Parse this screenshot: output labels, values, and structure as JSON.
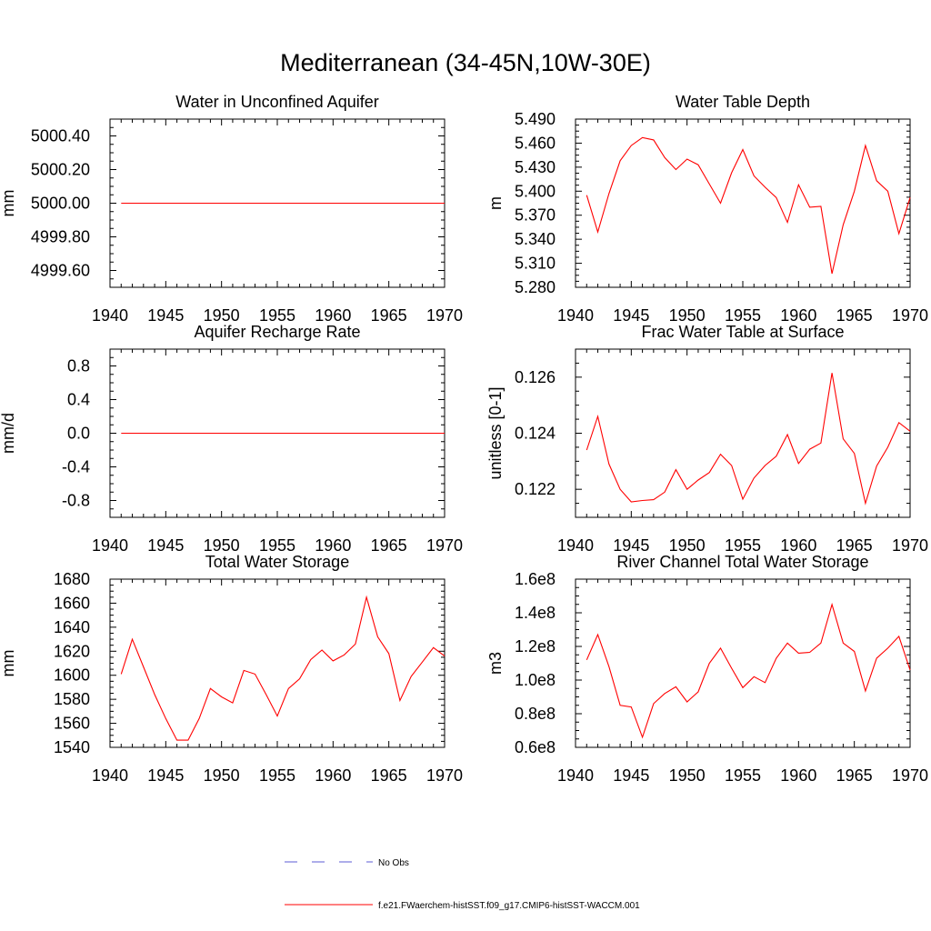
{
  "title": "Mediterranean (34-45N,10W-30E)",
  "line_color": "#ff0000",
  "obs_color": "#5b5bd6",
  "legend": {
    "items": [
      {
        "label": "No Obs",
        "style": "dashed"
      },
      {
        "label": "f.e21.FWaerchem-histSST.f09_g17.CMIP6-histSST-WACCM.001",
        "style": "solid"
      }
    ]
  },
  "chart_data": [
    {
      "type": "line",
      "title": "Water in Unconfined Aquifer",
      "ylabel": "mm",
      "xlim": [
        1940,
        1970
      ],
      "ylim": [
        4999.5,
        5000.5
      ],
      "xticks": [
        1940,
        1945,
        1950,
        1955,
        1960,
        1965,
        1970
      ],
      "yticks": [
        4999.6,
        4999.8,
        5000.0,
        5000.2,
        5000.4
      ],
      "ytick_labels": [
        "4999.60",
        "4999.80",
        "5000.00",
        "5000.20",
        "5000.40"
      ],
      "x": [
        1941,
        1970
      ],
      "y": [
        5000.0,
        5000.0
      ]
    },
    {
      "type": "line",
      "title": "Water Table Depth",
      "ylabel": "m",
      "xlim": [
        1940,
        1970
      ],
      "ylim": [
        5.28,
        5.49
      ],
      "xticks": [
        1940,
        1945,
        1950,
        1955,
        1960,
        1965,
        1970
      ],
      "yticks": [
        5.28,
        5.31,
        5.34,
        5.37,
        5.4,
        5.43,
        5.46,
        5.49
      ],
      "ytick_labels": [
        "5.280",
        "5.310",
        "5.340",
        "5.370",
        "5.400",
        "5.430",
        "5.460",
        "5.490"
      ],
      "x": [
        1941,
        1942,
        1943,
        1944,
        1945,
        1946,
        1947,
        1948,
        1949,
        1950,
        1951,
        1952,
        1953,
        1954,
        1955,
        1956,
        1957,
        1958,
        1959,
        1960,
        1961,
        1962,
        1963,
        1964,
        1965,
        1966,
        1967,
        1968,
        1969,
        1970
      ],
      "y": [
        5.395,
        5.349,
        5.397,
        5.438,
        5.457,
        5.467,
        5.464,
        5.442,
        5.427,
        5.44,
        5.433,
        5.409,
        5.385,
        5.423,
        5.452,
        5.419,
        5.405,
        5.392,
        5.361,
        5.408,
        5.38,
        5.381,
        5.297,
        5.358,
        5.4,
        5.457,
        5.413,
        5.4,
        5.347,
        5.392
      ]
    },
    {
      "type": "line",
      "title": "Aquifer Recharge Rate",
      "ylabel": "mm/d",
      "xlim": [
        1940,
        1970
      ],
      "ylim": [
        -1.0,
        1.0
      ],
      "xticks": [
        1940,
        1945,
        1950,
        1955,
        1960,
        1965,
        1970
      ],
      "yticks": [
        -0.8,
        -0.4,
        0.0,
        0.4,
        0.8
      ],
      "ytick_labels": [
        "-0.8",
        "-0.4",
        "0.0",
        "0.4",
        "0.8"
      ],
      "x": [
        1941,
        1970
      ],
      "y": [
        0.0,
        0.0
      ]
    },
    {
      "type": "line",
      "title": "Frac Water Table at Surface",
      "ylabel": "unitless [0-1]",
      "xlim": [
        1940,
        1970
      ],
      "ylim": [
        0.121,
        0.127
      ],
      "xticks": [
        1940,
        1945,
        1950,
        1955,
        1960,
        1965,
        1970
      ],
      "yticks": [
        0.122,
        0.124,
        0.126
      ],
      "ytick_labels": [
        "0.122",
        "0.124",
        "0.126"
      ],
      "x": [
        1941,
        1942,
        1943,
        1944,
        1945,
        1946,
        1947,
        1948,
        1949,
        1950,
        1951,
        1952,
        1953,
        1954,
        1955,
        1956,
        1957,
        1958,
        1959,
        1960,
        1961,
        1962,
        1963,
        1964,
        1965,
        1966,
        1967,
        1968,
        1969,
        1970
      ],
      "y": [
        0.1234,
        0.1246,
        0.1229,
        0.122,
        0.12155,
        0.1216,
        0.12163,
        0.1219,
        0.1227,
        0.122,
        0.12233,
        0.1226,
        0.12325,
        0.12285,
        0.12165,
        0.1224,
        0.12285,
        0.12318,
        0.12395,
        0.12292,
        0.12343,
        0.12365,
        0.12615,
        0.1238,
        0.12328,
        0.1215,
        0.12283,
        0.1235,
        0.12438,
        0.12407
      ]
    },
    {
      "type": "line",
      "title": "Total Water Storage",
      "ylabel": "mm",
      "xlim": [
        1940,
        1970
      ],
      "ylim": [
        1540,
        1680
      ],
      "xticks": [
        1940,
        1945,
        1950,
        1955,
        1960,
        1965,
        1970
      ],
      "yticks": [
        1540,
        1560,
        1580,
        1600,
        1620,
        1640,
        1660,
        1680
      ],
      "ytick_labels": [
        "1540",
        "1560",
        "1580",
        "1600",
        "1620",
        "1640",
        "1660",
        "1680"
      ],
      "x": [
        1941,
        1942,
        1943,
        1944,
        1945,
        1946,
        1947,
        1948,
        1949,
        1950,
        1951,
        1952,
        1953,
        1954,
        1955,
        1956,
        1957,
        1958,
        1959,
        1960,
        1961,
        1962,
        1963,
        1964,
        1965,
        1966,
        1967,
        1968,
        1969,
        1970
      ],
      "y": [
        1601,
        1630,
        1607,
        1584,
        1564,
        1546,
        1546,
        1564,
        1589,
        1582,
        1577,
        1604,
        1601,
        1584,
        1566,
        1589,
        1597,
        1613,
        1621,
        1612,
        1617,
        1626,
        1665,
        1632,
        1618,
        1579,
        1599,
        1611,
        1623,
        1616
      ]
    },
    {
      "type": "line",
      "title": "River Channel Total Water Storage",
      "ylabel": "m3",
      "xlim": [
        1940,
        1970
      ],
      "ylim": [
        60000000.0,
        160000000.0
      ],
      "xticks": [
        1940,
        1945,
        1950,
        1955,
        1960,
        1965,
        1970
      ],
      "yticks": [
        60000000.0,
        80000000.0,
        100000000.0,
        120000000.0,
        140000000.0,
        160000000.0
      ],
      "ytick_labels": [
        "0.6e8",
        "0.8e8",
        "1.0e8",
        "1.2e8",
        "1.4e8",
        "1.6e8"
      ],
      "x": [
        1941,
        1942,
        1943,
        1944,
        1945,
        1946,
        1947,
        1948,
        1949,
        1950,
        1951,
        1952,
        1953,
        1954,
        1955,
        1956,
        1957,
        1958,
        1959,
        1960,
        1961,
        1962,
        1963,
        1964,
        1965,
        1966,
        1967,
        1968,
        1969,
        1970
      ],
      "y": [
        112000000.0,
        127000000.0,
        108000000.0,
        85000000.0,
        84000000.0,
        66000000.0,
        86000000.0,
        92000000.0,
        96000000.0,
        87000000.0,
        93000000.0,
        110000000.0,
        119000000.0,
        107000000.0,
        95500000.0,
        102000000.0,
        98500000.0,
        113000000.0,
        122000000.0,
        116000000.0,
        116500000.0,
        122000000.0,
        145000000.0,
        122000000.0,
        117000000.0,
        93500000.0,
        113000000.0,
        119000000.0,
        126000000.0,
        106000000.0
      ]
    }
  ]
}
